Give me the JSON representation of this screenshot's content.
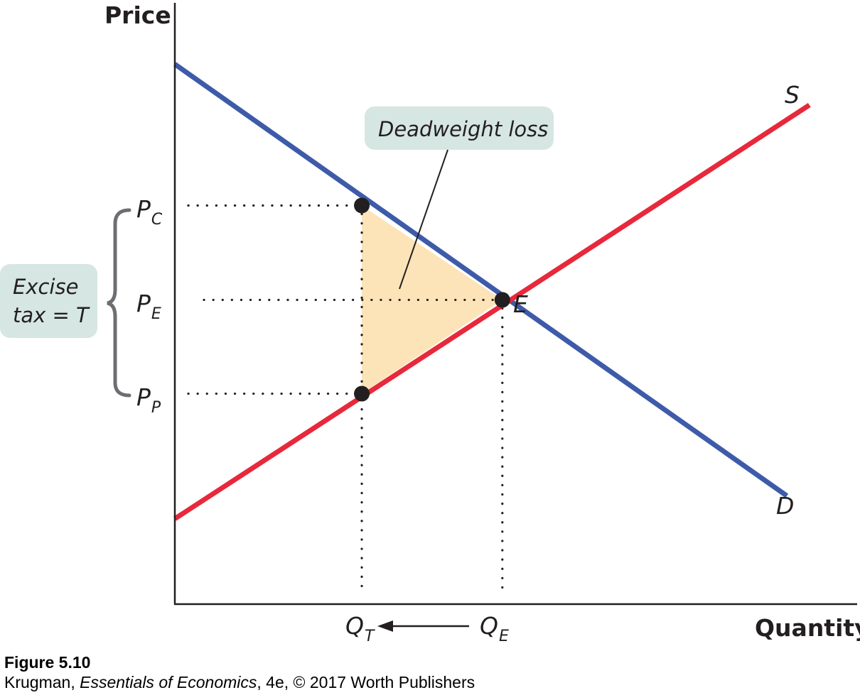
{
  "chart_data": {
    "type": "line",
    "xlabel": "Quantity",
    "ylabel": "Price",
    "xlim": [
      0,
      10
    ],
    "ylim": [
      0,
      10
    ],
    "series": [
      {
        "name": "D",
        "color": "#3e5ba9",
        "points": [
          [
            0,
            8.98
          ],
          [
            8.97,
            1.8
          ]
        ]
      },
      {
        "name": "S",
        "color": "#e8283b",
        "points": [
          [
            0,
            1.42
          ],
          [
            9.3,
            8.3
          ]
        ]
      }
    ],
    "points": {
      "E": {
        "label": "E",
        "x": 4.8,
        "y": 5.06
      },
      "C": {
        "label": "P",
        "sub": "C",
        "x": 2.74,
        "y": 6.63
      },
      "P": {
        "label": "P",
        "sub": "P",
        "x": 2.74,
        "y": 3.5
      }
    },
    "x_ticks": [
      {
        "label": "Q",
        "sub": "T",
        "x": 2.74
      },
      {
        "label": "Q",
        "sub": "E",
        "x": 4.8
      }
    ],
    "y_ticks": [
      {
        "label": "P",
        "sub": "C",
        "y": 6.63
      },
      {
        "label": "P",
        "sub": "E",
        "y": 5.06
      },
      {
        "label": "P",
        "sub": "P",
        "y": 3.5
      }
    ],
    "deadweight_loss_label": "Deadweight loss",
    "tax_label_line1": "Excise",
    "tax_label_line2": "tax = T",
    "shade_color": "#fde4b8",
    "callout_color": "#d6e6e2"
  },
  "caption": {
    "figure": "Figure 5.10",
    "source_pre": "Krugman, ",
    "source_title": "Essentials of Economics",
    "source_post": ", 4e, © 2017 Worth Publishers"
  }
}
